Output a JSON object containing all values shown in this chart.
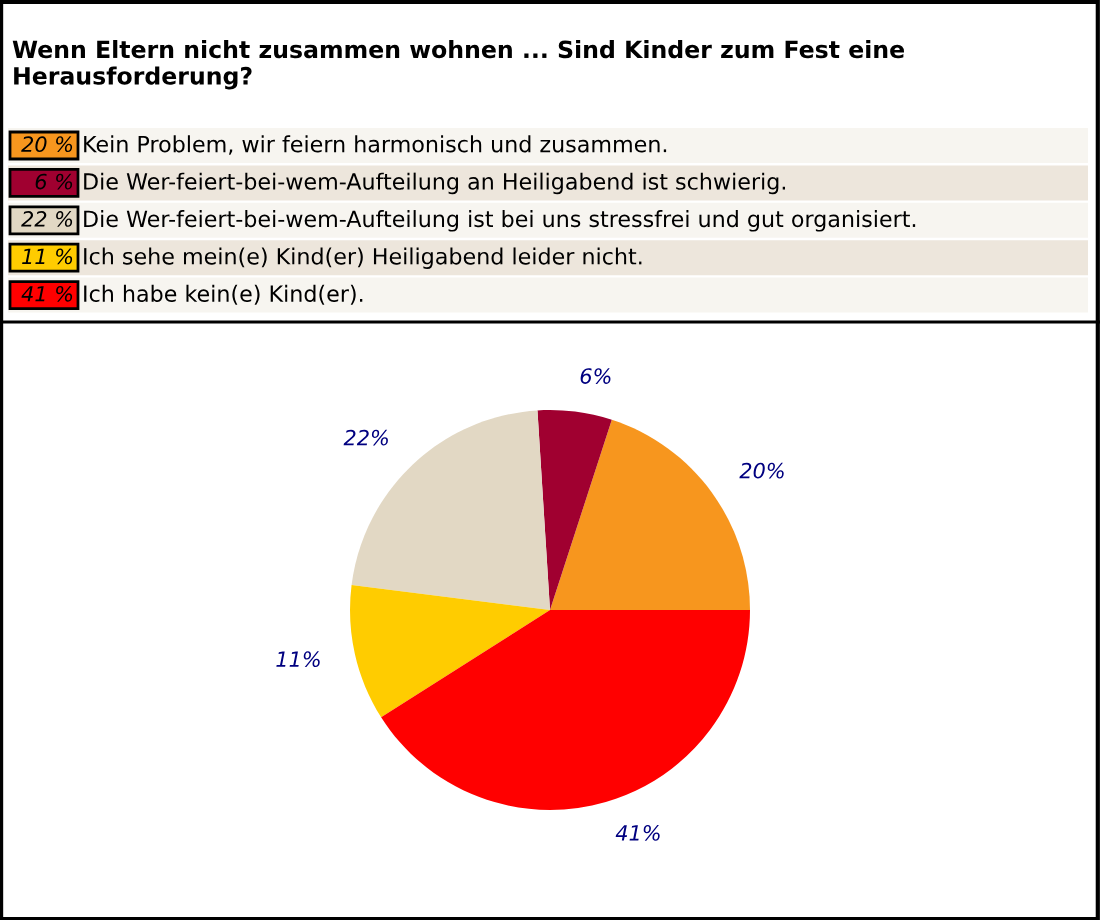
{
  "chart_data": {
    "type": "pie",
    "title": "Wenn Eltern nicht zusammen wohnen ... Sind Kinder zum Fest eine Herausforderung?",
    "categories": [
      "Kein Problem, wir feiern harmonisch und zusammen.",
      "Die Wer-feiert-bei-wem-Aufteilung an Heiligabend ist schwierig.",
      "Die Wer-feiert-bei-wem-Aufteilung ist bei uns stressfrei und gut organisiert.",
      "Ich sehe mein(e) Kind(er) Heiligabend leider nicht.",
      "Ich habe kein(e) Kind(er)."
    ],
    "values": [
      20,
      6,
      22,
      11,
      41
    ],
    "colors": [
      "#f7961e",
      "#a00030",
      "#e2d8c4",
      "#ffcc00",
      "#ff0000"
    ],
    "value_labels": [
      "20%",
      "6%",
      "22%",
      "11%",
      "41%"
    ],
    "annotations": [
      "20 %",
      "6 %",
      "22 %",
      "11 %",
      "41 %"
    ],
    "legend": "top"
  }
}
